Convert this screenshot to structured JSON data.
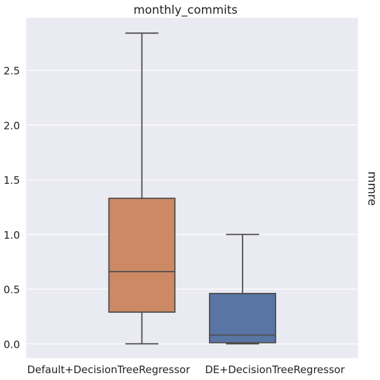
{
  "chart_data": {
    "type": "box",
    "title": "monthly_commits",
    "ylabel": "mmre",
    "xlabel": "",
    "ylim": [
      -0.13,
      2.98
    ],
    "yticks": [
      0.0,
      0.5,
      1.0,
      1.5,
      2.0,
      2.5
    ],
    "ytick_labels": [
      "0.0",
      "0.5",
      "1.0",
      "1.5",
      "2.0",
      "2.5"
    ],
    "grid": true,
    "categories": [
      "Default+DecisionTreeRegressor",
      "DE+DecisionTreeRegressor"
    ],
    "boxes": [
      {
        "category": "Default+DecisionTreeRegressor",
        "whisker_low": 0.0,
        "q1": 0.29,
        "median": 0.66,
        "q3": 1.33,
        "whisker_high": 2.84,
        "color": "#cc8963"
      },
      {
        "category": "DE+DecisionTreeRegressor",
        "whisker_low": 0.0,
        "q1": 0.01,
        "median": 0.08,
        "q3": 0.46,
        "whisker_high": 1.0,
        "color": "#5875a4"
      }
    ],
    "colors": {
      "background": "#eaeaf2",
      "grid": "#ffffff",
      "lines": "#4c4c4c"
    }
  }
}
